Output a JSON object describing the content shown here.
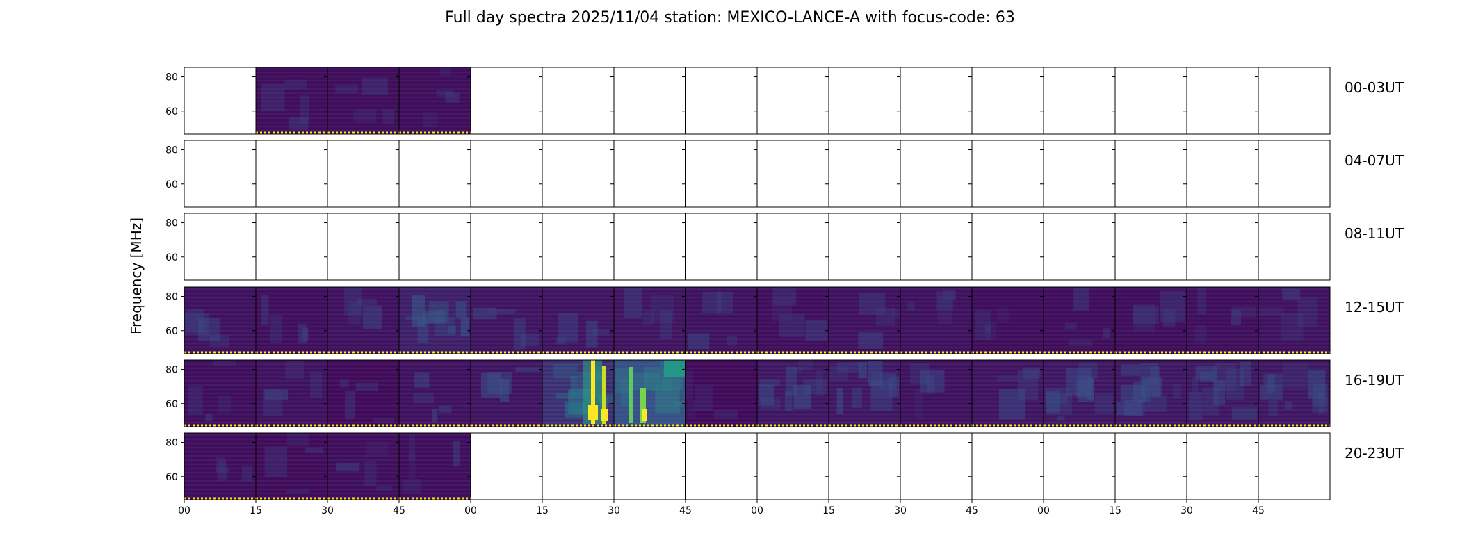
{
  "chart_data": {
    "type": "heatmap",
    "title": "Full day spectra 2025/11/04 station: MEXICO-LANCE-A with focus-code: 63",
    "ylabel": "Frequency [MHz]",
    "y_ticks": [
      "80",
      "60"
    ],
    "x_tick_labels": [
      "00",
      "15",
      "30",
      "45",
      "00",
      "15",
      "30",
      "45",
      "00",
      "15",
      "30",
      "45",
      "00",
      "15",
      "30",
      "45"
    ],
    "colormap": "viridis",
    "colors": {
      "background": "#ffffff",
      "low": "#440154",
      "mid": "#2c728e",
      "high": "#fde725",
      "frame": "#000000"
    },
    "rows": [
      {
        "label": "00-03UT",
        "panels": [
          0,
          1,
          1,
          1,
          0,
          0,
          0,
          0,
          0,
          0,
          0,
          0,
          0,
          0,
          0,
          0
        ],
        "activity": [
          0,
          0.05,
          0.05,
          0.05,
          0,
          0,
          0,
          0,
          0,
          0,
          0,
          0,
          0,
          0,
          0,
          0
        ]
      },
      {
        "label": "04-07UT",
        "panels": [
          0,
          0,
          0,
          0,
          0,
          0,
          0,
          0,
          0,
          0,
          0,
          0,
          0,
          0,
          0,
          0
        ],
        "activity": [
          0,
          0,
          0,
          0,
          0,
          0,
          0,
          0,
          0,
          0,
          0,
          0,
          0,
          0,
          0,
          0
        ]
      },
      {
        "label": "08-11UT",
        "panels": [
          0,
          0,
          0,
          0,
          0,
          0,
          0,
          0,
          0,
          0,
          0,
          0,
          0,
          0,
          0,
          0
        ],
        "activity": [
          0,
          0,
          0,
          0,
          0,
          0,
          0,
          0,
          0,
          0,
          0,
          0,
          0,
          0,
          0,
          0
        ]
      },
      {
        "label": "12-15UT",
        "panels": [
          1,
          1,
          1,
          1,
          1,
          1,
          1,
          1,
          1,
          1,
          1,
          1,
          1,
          1,
          1,
          1
        ],
        "activity": [
          0.08,
          0.06,
          0.08,
          0.18,
          0.1,
          0.1,
          0.1,
          0.08,
          0.06,
          0.08,
          0.08,
          0.05,
          0.05,
          0.05,
          0.06,
          0.08
        ]
      },
      {
        "label": "16-19UT",
        "panels": [
          1,
          1,
          1,
          1,
          1,
          1,
          1,
          1,
          1,
          1,
          1,
          1,
          1,
          1,
          1,
          1
        ],
        "activity": [
          0.06,
          0.08,
          0.03,
          0.08,
          0.1,
          0.3,
          0.45,
          0.03,
          0.12,
          0.12,
          0.08,
          0.1,
          0.12,
          0.12,
          0.12,
          0.12
        ]
      },
      {
        "label": "20-23UT",
        "panels": [
          1,
          1,
          1,
          1,
          0,
          0,
          0,
          0,
          0,
          0,
          0,
          0,
          0,
          0,
          0,
          0
        ],
        "activity": [
          0.06,
          0.04,
          0.06,
          0.06,
          0,
          0,
          0,
          0,
          0,
          0,
          0,
          0,
          0,
          0,
          0,
          0
        ]
      }
    ],
    "bursts": [
      {
        "row": "16-19UT",
        "panel": 5,
        "intensity": "high",
        "features": [
          "bright vertical yellow burst lanes"
        ]
      },
      {
        "row": "16-19UT",
        "panel": 6,
        "intensity": "high",
        "features": [
          "green-yellow burst lanes"
        ]
      }
    ]
  }
}
